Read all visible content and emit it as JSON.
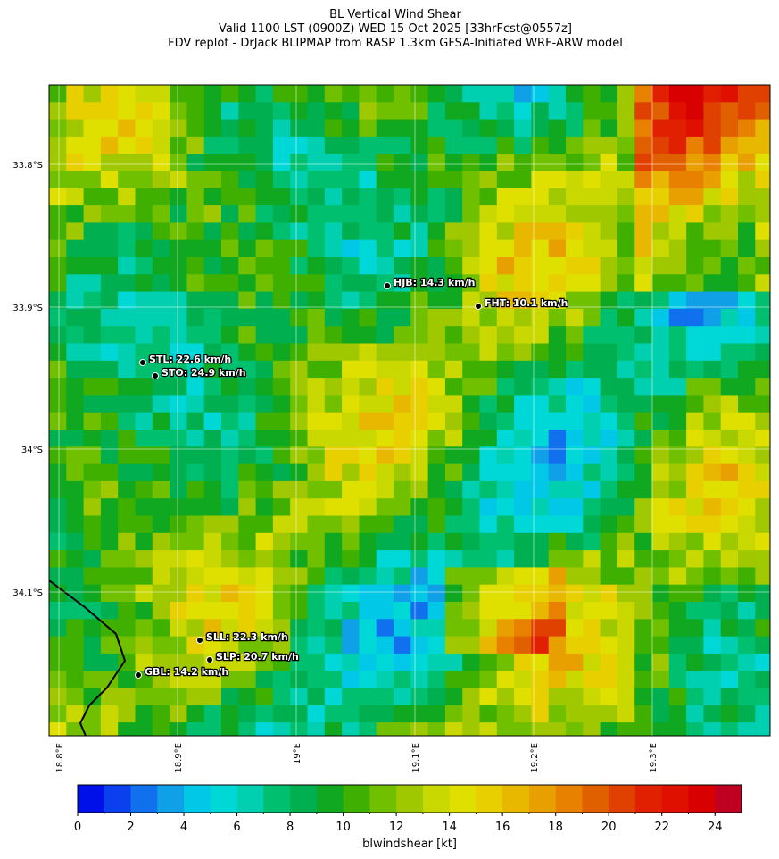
{
  "header": {
    "lines": [
      "BL Vertical Wind Shear",
      "Valid 1100 LST (0900Z) WED 15 Oct 2025 [33hrFcst@0557z]",
      "FDV replot - DrJack BLIPMAP from RASP 1.3km GFSA-Initiated WRF-ARW model"
    ]
  },
  "map": {
    "lat_labels": [
      "33.8°S",
      "33.9°S",
      "34°S",
      "34.1°S"
    ],
    "lon_labels": [
      "18.8°E",
      "18.9°E",
      "19°E",
      "19.1°E",
      "19.2°E",
      "19.3°E"
    ],
    "stations": [
      "HJB: 14.3 km/h",
      "FHT: 10.1 km/h",
      "STL: 22.6 km/h",
      "STO: 24.9 km/h",
      "SLL: 22.3 km/h",
      "SLP: 20.7 km/h",
      "GBL: 14.2 km/h"
    ]
  },
  "colorbar": {
    "lim": [
      0,
      25
    ],
    "ticks": [
      0,
      2,
      4,
      6,
      8,
      10,
      12,
      14,
      16,
      18,
      20,
      22,
      24
    ],
    "label": "blwindshear [kt]",
    "colors": [
      "#0010e8",
      "#0a40ee",
      "#1070ee",
      "#10a0e8",
      "#00c8e6",
      "#00d8d8",
      "#00d0b0",
      "#00c070",
      "#00b050",
      "#10a820",
      "#40b000",
      "#70c000",
      "#a0c800",
      "#c8d800",
      "#e0e000",
      "#e8d000",
      "#e8b800",
      "#e8a000",
      "#e88000",
      "#e06000",
      "#e04000",
      "#e02000",
      "#e01000",
      "#d80000",
      "#c00020"
    ]
  }
}
